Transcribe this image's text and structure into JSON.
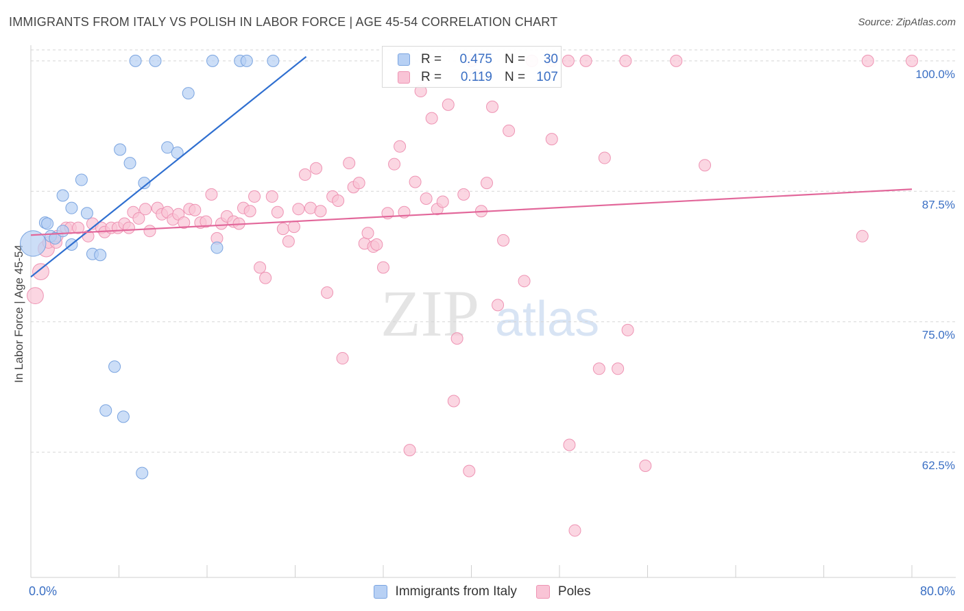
{
  "header": {
    "title": "IMMIGRANTS FROM ITALY VS POLISH IN LABOR FORCE | AGE 45-54 CORRELATION CHART",
    "source": "Source: ZipAtlas.com"
  },
  "watermark": {
    "zip": "ZIP",
    "atlas": "atlas"
  },
  "legend_top": {
    "rows": [
      {
        "r_label": "R =",
        "r_value": "0.475",
        "n_label": "N =",
        "n_value": "30"
      },
      {
        "r_label": "R =",
        "r_value": "0.119",
        "n_label": "N =",
        "n_value": "107"
      }
    ]
  },
  "colors": {
    "italy_fill": "#b7d0f4",
    "italy_stroke": "#7aa4e0",
    "italy_line": "#2f6fd0",
    "poles_fill": "#f9c4d6",
    "poles_stroke": "#ee93b3",
    "poles_line": "#e2679a",
    "tick_label": "#3a6fc4",
    "grid": "#d5d5d5"
  },
  "chart_data": {
    "type": "scatter",
    "title": "IMMIGRANTS FROM ITALY VS POLISH IN LABOR FORCE | AGE 45-54 CORRELATION CHART",
    "ylabel": "In Labor Force | Age 45-54",
    "xlabel": "",
    "xlim": [
      0,
      80
    ],
    "ylim": [
      50.5,
      101.5
    ],
    "x_tick_labels": [
      {
        "value": 0,
        "label": "0.0%"
      },
      {
        "value": 80,
        "label": "80.0%"
      }
    ],
    "x_minor_ticks": [
      8,
      16,
      24,
      32,
      40,
      48,
      56,
      64,
      72,
      80
    ],
    "y_ticks": [
      {
        "value": 100,
        "label": "100.0%"
      },
      {
        "value": 87.5,
        "label": "87.5%"
      },
      {
        "value": 75,
        "label": "75.0%"
      },
      {
        "value": 62.5,
        "label": "62.5%"
      }
    ],
    "grid": true,
    "legend_position": "bottom",
    "series": [
      {
        "name": "Immigrants from Italy",
        "r": 0.475,
        "n": 30,
        "trend": {
          "x": [
            0,
            25
          ],
          "y": [
            79.3,
            100.4
          ]
        },
        "points": [
          [
            0.2,
            82.5,
            2.2
          ],
          [
            1.3,
            84.5,
            1
          ],
          [
            1.5,
            84.4,
            1
          ],
          [
            1.8,
            83.2,
            1
          ],
          [
            2.2,
            83.0,
            1
          ],
          [
            2.9,
            83.7,
            1
          ],
          [
            3.7,
            82.4,
            1
          ],
          [
            2.9,
            87.1,
            1
          ],
          [
            3.7,
            85.9,
            1
          ],
          [
            5.1,
            85.4,
            1
          ],
          [
            4.6,
            88.6,
            1
          ],
          [
            5.6,
            81.5,
            1
          ],
          [
            6.3,
            81.4,
            1
          ],
          [
            8.1,
            91.5,
            1
          ],
          [
            9.0,
            90.2,
            1
          ],
          [
            10.3,
            88.3,
            1
          ],
          [
            12.4,
            91.7,
            1
          ],
          [
            13.3,
            91.2,
            1
          ],
          [
            14.3,
            96.9,
            1
          ],
          [
            16.9,
            82.1,
            1
          ],
          [
            9.5,
            100,
            1
          ],
          [
            11.3,
            100,
            1
          ],
          [
            16.5,
            100,
            1
          ],
          [
            19.0,
            100,
            1
          ],
          [
            19.6,
            100,
            1
          ],
          [
            22.0,
            100,
            1
          ],
          [
            7.6,
            70.7,
            1
          ],
          [
            6.8,
            66.5,
            1
          ],
          [
            8.4,
            65.9,
            1
          ],
          [
            10.1,
            60.5,
            1
          ]
        ]
      },
      {
        "name": "Poles",
        "r": 0.119,
        "n": 107,
        "trend": {
          "x": [
            0,
            80
          ],
          "y": [
            83.3,
            87.7
          ]
        },
        "points": [
          [
            0.4,
            77.5,
            1.4
          ],
          [
            0.9,
            79.8,
            1.4
          ],
          [
            1.4,
            82.0,
            1.4
          ],
          [
            1.6,
            82.6,
            1
          ],
          [
            2.3,
            82.6,
            1
          ],
          [
            2.4,
            83.2,
            1
          ],
          [
            3.2,
            84.0,
            1
          ],
          [
            3.6,
            84.0,
            1
          ],
          [
            4.3,
            84.0,
            1
          ],
          [
            5.2,
            83.2,
            1
          ],
          [
            5.6,
            84.4,
            1
          ],
          [
            6.4,
            84.0,
            1
          ],
          [
            6.7,
            83.6,
            1
          ],
          [
            7.3,
            84.0,
            1
          ],
          [
            7.9,
            84.0,
            1
          ],
          [
            8.5,
            84.4,
            1
          ],
          [
            8.9,
            84.0,
            1
          ],
          [
            9.3,
            85.5,
            1
          ],
          [
            9.8,
            84.9,
            1
          ],
          [
            10.4,
            85.8,
            1
          ],
          [
            10.8,
            83.7,
            1
          ],
          [
            11.5,
            85.9,
            1
          ],
          [
            11.9,
            85.3,
            1
          ],
          [
            12.4,
            85.5,
            1
          ],
          [
            12.9,
            84.8,
            1
          ],
          [
            13.4,
            85.3,
            1
          ],
          [
            13.9,
            84.5,
            1
          ],
          [
            14.4,
            85.8,
            1
          ],
          [
            14.9,
            85.7,
            1
          ],
          [
            15.4,
            84.5,
            1
          ],
          [
            15.9,
            84.6,
            1
          ],
          [
            16.4,
            87.2,
            1
          ],
          [
            16.9,
            83.0,
            1
          ],
          [
            17.3,
            84.4,
            1
          ],
          [
            17.8,
            85.1,
            1
          ],
          [
            18.4,
            84.6,
            1
          ],
          [
            18.9,
            84.4,
            1
          ],
          [
            19.3,
            85.9,
            1
          ],
          [
            19.9,
            85.6,
            1
          ],
          [
            20.3,
            87.0,
            1
          ],
          [
            20.8,
            80.2,
            1
          ],
          [
            21.3,
            79.2,
            1
          ],
          [
            21.9,
            87.0,
            1
          ],
          [
            22.4,
            85.5,
            1
          ],
          [
            22.9,
            83.9,
            1
          ],
          [
            23.4,
            82.7,
            1
          ],
          [
            23.9,
            84.1,
            1
          ],
          [
            24.3,
            85.8,
            1
          ],
          [
            24.9,
            89.1,
            1
          ],
          [
            25.4,
            85.9,
            1
          ],
          [
            25.9,
            89.7,
            1
          ],
          [
            26.3,
            85.6,
            1
          ],
          [
            26.9,
            77.8,
            1
          ],
          [
            27.4,
            87.0,
            1
          ],
          [
            27.9,
            86.6,
            1
          ],
          [
            28.3,
            71.5,
            1
          ],
          [
            28.9,
            90.2,
            1
          ],
          [
            29.3,
            87.9,
            1
          ],
          [
            29.8,
            88.3,
            1
          ],
          [
            30.3,
            82.5,
            1
          ],
          [
            30.6,
            83.5,
            1
          ],
          [
            31.1,
            82.2,
            1
          ],
          [
            31.4,
            82.4,
            1
          ],
          [
            32.0,
            80.2,
            1
          ],
          [
            32.4,
            85.4,
            1
          ],
          [
            33.0,
            90.1,
            1
          ],
          [
            33.5,
            91.8,
            1
          ],
          [
            33.9,
            85.5,
            1
          ],
          [
            34.4,
            62.7,
            1
          ],
          [
            34.9,
            88.4,
            1
          ],
          [
            35.4,
            97.1,
            1
          ],
          [
            35.9,
            86.8,
            1
          ],
          [
            36.4,
            94.5,
            1
          ],
          [
            36.9,
            85.8,
            1
          ],
          [
            37.4,
            86.5,
            1
          ],
          [
            37.9,
            95.8,
            1
          ],
          [
            38.4,
            67.4,
            1
          ],
          [
            38.7,
            73.4,
            1
          ],
          [
            39.3,
            87.2,
            1
          ],
          [
            39.8,
            60.7,
            1
          ],
          [
            40.4,
            98.6,
            1
          ],
          [
            40.9,
            85.6,
            1
          ],
          [
            41.4,
            88.3,
            1
          ],
          [
            41.9,
            95.6,
            1
          ],
          [
            42.4,
            76.6,
            1
          ],
          [
            42.9,
            82.8,
            1
          ],
          [
            43.4,
            93.3,
            1
          ],
          [
            44.8,
            78.9,
            1
          ],
          [
            47.3,
            92.5,
            1
          ],
          [
            48.9,
            63.2,
            1
          ],
          [
            51.6,
            70.5,
            1
          ],
          [
            52.1,
            90.7,
            1
          ],
          [
            53.3,
            70.5,
            1
          ],
          [
            54.2,
            74.2,
            1
          ],
          [
            55.8,
            61.2,
            1
          ],
          [
            61.2,
            90.0,
            1
          ],
          [
            75.5,
            83.2,
            1
          ],
          [
            49.4,
            55.0,
            1
          ],
          [
            40.0,
            100,
            1
          ],
          [
            48.8,
            100,
            1
          ],
          [
            50.4,
            100,
            1
          ],
          [
            54.0,
            100,
            1
          ],
          [
            58.6,
            100,
            1
          ],
          [
            76.0,
            100,
            1
          ],
          [
            80.0,
            100,
            1
          ],
          [
            47.3,
            100,
            1
          ],
          [
            45.5,
            100,
            1
          ]
        ]
      }
    ]
  },
  "legend_bottom": {
    "items": [
      {
        "label": "Immigrants from Italy"
      },
      {
        "label": "Poles"
      }
    ]
  }
}
